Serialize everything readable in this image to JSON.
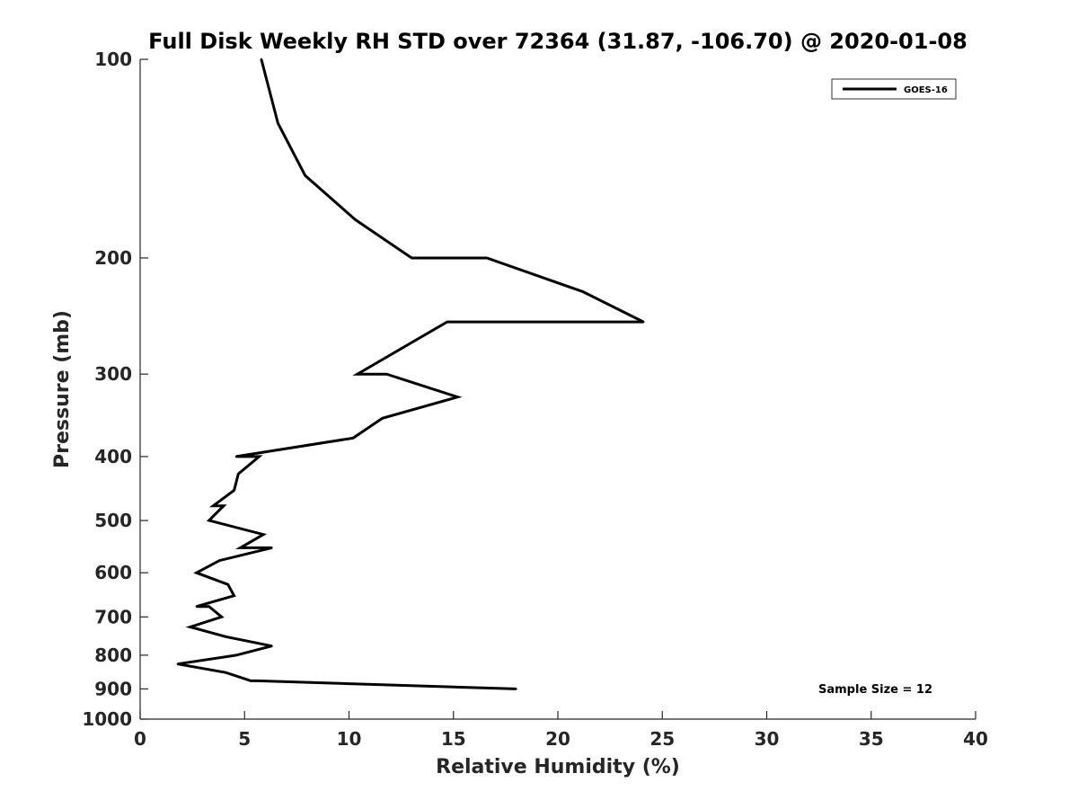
{
  "chart_data": {
    "type": "line",
    "title": "Full Disk Weekly RH STD over 72364 (31.87, -106.70) @ 2020-01-08",
    "xlabel": "Relative Humidity (%)",
    "ylabel": "Pressure (mb)",
    "xlim": [
      0,
      40
    ],
    "ylim": [
      100,
      1000
    ],
    "y_scale": "log",
    "y_inverted": true,
    "x_ticks": [
      0,
      5,
      10,
      15,
      20,
      25,
      30,
      35,
      40
    ],
    "y_ticks": [
      100,
      200,
      300,
      400,
      500,
      600,
      700,
      800,
      900,
      1000
    ],
    "grid": false,
    "legend_position": "top-right",
    "annotation": "Sample Size = 12",
    "series": [
      {
        "name": "GOES-16",
        "color": "#000000",
        "points": [
          [
            5.8,
            100
          ],
          [
            6.6,
            125
          ],
          [
            7.9,
            150
          ],
          [
            10.3,
            175
          ],
          [
            13.0,
            200
          ],
          [
            16.6,
            200
          ],
          [
            21.2,
            225
          ],
          [
            24.1,
            250
          ],
          [
            14.7,
            250
          ],
          [
            10.4,
            300
          ],
          [
            11.8,
            300
          ],
          [
            15.2,
            325
          ],
          [
            11.6,
            350
          ],
          [
            10.2,
            375
          ],
          [
            4.6,
            400
          ],
          [
            5.7,
            400
          ],
          [
            4.7,
            425
          ],
          [
            4.5,
            450
          ],
          [
            3.5,
            475
          ],
          [
            4.0,
            475
          ],
          [
            3.3,
            500
          ],
          [
            5.9,
            525
          ],
          [
            4.8,
            550
          ],
          [
            6.3,
            550
          ],
          [
            3.8,
            575
          ],
          [
            2.7,
            600
          ],
          [
            4.2,
            625
          ],
          [
            4.5,
            650
          ],
          [
            2.7,
            675
          ],
          [
            3.3,
            675
          ],
          [
            3.9,
            700
          ],
          [
            2.4,
            725
          ],
          [
            4.1,
            750
          ],
          [
            6.3,
            775
          ],
          [
            4.6,
            800
          ],
          [
            1.8,
            825
          ],
          [
            4.1,
            850
          ],
          [
            5.3,
            875
          ],
          [
            5.6,
            875
          ],
          [
            18.0,
            900
          ]
        ]
      }
    ]
  }
}
